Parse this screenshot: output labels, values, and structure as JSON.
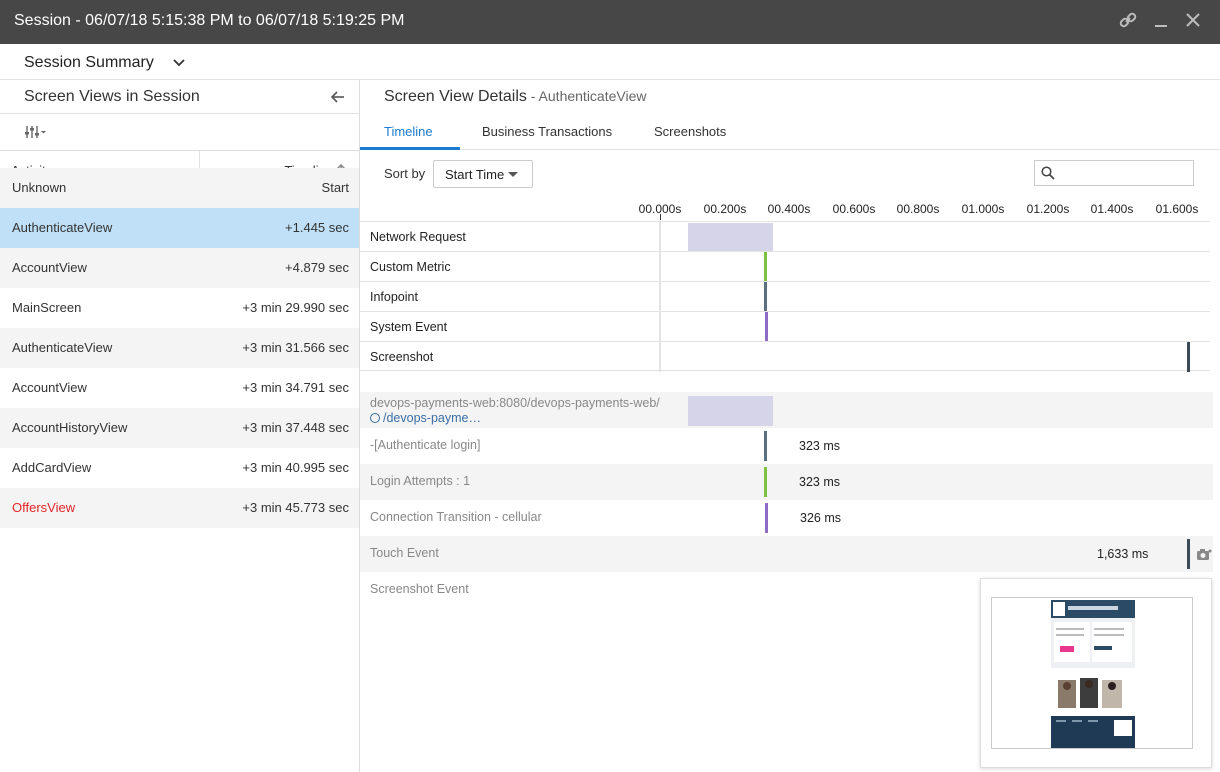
{
  "window": {
    "title": "Session - 06/07/18 5:15:38 PM to 06/07/18 5:19:25 PM",
    "icons": [
      "link-icon",
      "minimize-icon",
      "close-icon"
    ]
  },
  "summary": {
    "label": "Session Summary"
  },
  "left": {
    "title": "Screen Views in Session",
    "columns": {
      "activity": "Activity",
      "timeline": "Timeline"
    },
    "rows": [
      {
        "activity": "Unknown",
        "time": "Start"
      },
      {
        "activity": "AuthenticateView",
        "time": "+1.445 sec"
      },
      {
        "activity": "AccountView",
        "time": "+4.879 sec"
      },
      {
        "activity": "MainScreen",
        "time": "+3 min 29.990 sec"
      },
      {
        "activity": "AuthenticateView",
        "time": "+3 min 31.566 sec"
      },
      {
        "activity": "AccountView",
        "time": "+3 min 34.791 sec"
      },
      {
        "activity": "AccountHistoryView",
        "time": "+3 min 37.448 sec"
      },
      {
        "activity": "AddCardView",
        "time": "+3 min 40.995 sec"
      },
      {
        "activity": "OffersView",
        "time": "+3 min 45.773 sec"
      }
    ],
    "selected_index": 1,
    "error_index": 8
  },
  "right": {
    "title": "Screen View Details",
    "subtitle": " - AuthenticateView",
    "tabs": [
      "Timeline",
      "Business Transactions",
      "Screenshots"
    ],
    "active_tab": "Timeline",
    "sort_label": "Sort by",
    "sort_value": "Start Time",
    "search_placeholder": "",
    "ticks": [
      "00.000s",
      "00.200s",
      "00.400s",
      "00.600s",
      "00.800s",
      "01.000s",
      "01.200s",
      "01.400s",
      "01.600s"
    ],
    "timeline_rows": [
      "Network Request",
      "Custom Metric",
      "Infopoint",
      "System Event",
      "Screenshot"
    ],
    "details": [
      {
        "label": "devops-payments-web:8080/devops-payments-web/",
        "sublabel": "/devops-payme…",
        "duration": ""
      },
      {
        "label": "-[Authenticate login]",
        "duration": "323 ms"
      },
      {
        "label": "Login Attempts : 1",
        "duration": "323 ms"
      },
      {
        "label": "Connection Transition - cellular",
        "duration": "326 ms"
      },
      {
        "label": "Touch Event",
        "duration": "1,633 ms"
      },
      {
        "label": "Screenshot Event",
        "duration": ""
      }
    ],
    "colors": {
      "accent": "#1a7bd0",
      "network": "#d6d4e8",
      "custom_metric": "#7cc142",
      "infopoint": "#5a7080",
      "system_event": "#8e6bc4",
      "screenshot": "#3b4a56",
      "error_text": "#e5252a"
    }
  }
}
